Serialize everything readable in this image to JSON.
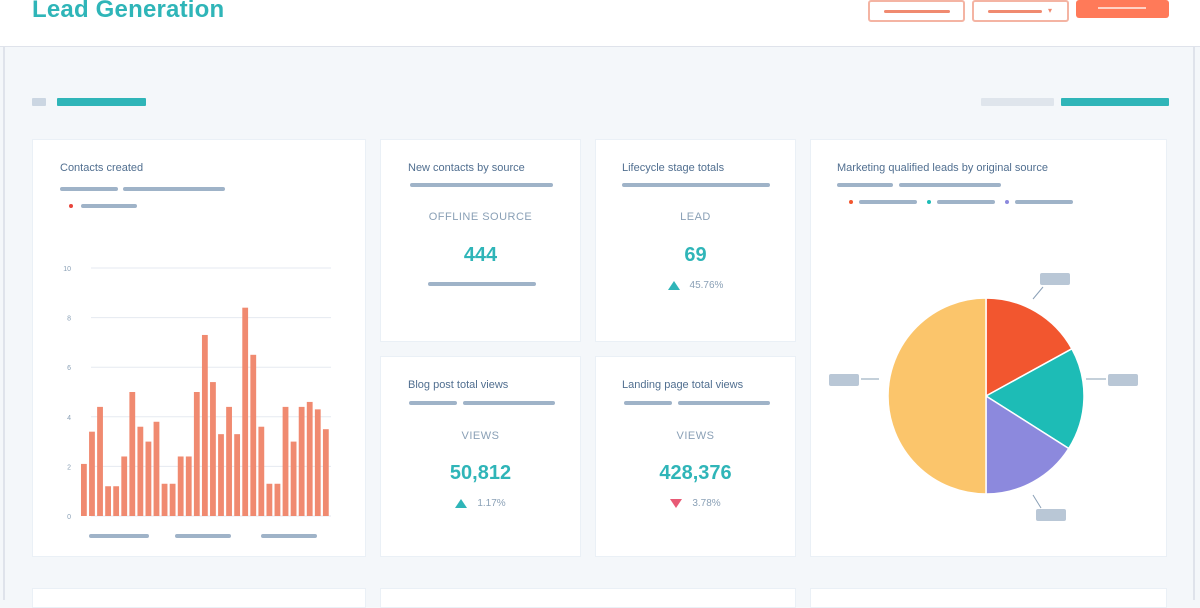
{
  "header": {
    "title": "Lead Generation"
  },
  "colors": {
    "accent": "#2fb5b8",
    "primary_button": "#ff7a59",
    "bar": "#f08a70",
    "pie_orange": "#fbc56b",
    "pie_red": "#f2562f",
    "pie_teal": "#1dbcb6",
    "pie_purple": "#8c89dd",
    "down": "#e85a75"
  },
  "cards": {
    "contacts_created": {
      "title": "Contacts created"
    },
    "new_contacts": {
      "title": "New contacts by source",
      "label": "OFFLINE SOURCE",
      "value": "444"
    },
    "lifecycle": {
      "title": "Lifecycle stage totals",
      "label": "LEAD",
      "value": "69",
      "change": "45.76%"
    },
    "mql": {
      "title": "Marketing qualified leads by original source"
    },
    "blog": {
      "title": "Blog post total views",
      "label": "VIEWS",
      "value": "50,812",
      "change": "1.17%"
    },
    "landing": {
      "title": "Landing page total views",
      "label": "VIEWS",
      "value": "428,376",
      "change": "3.78%"
    }
  },
  "chart_data": [
    {
      "type": "bar",
      "title": "Contacts created",
      "yticks": [
        "10",
        "8",
        "6",
        "4",
        "2",
        "0"
      ],
      "ylim": [
        0,
        10
      ],
      "grid": true,
      "values": [
        2.1,
        3.4,
        4.4,
        1.2,
        1.2,
        2.4,
        5.0,
        3.6,
        3.0,
        3.8,
        1.3,
        1.3,
        2.4,
        2.4,
        5.0,
        7.3,
        5.4,
        3.3,
        4.4,
        3.3,
        8.4,
        6.5,
        3.6,
        1.3,
        1.3,
        4.4,
        3.0,
        4.4,
        4.6,
        4.3,
        3.5
      ],
      "color": "#f08a70"
    },
    {
      "type": "pie",
      "title": "Marketing qualified leads by original source",
      "values": [
        17,
        17,
        16,
        50
      ],
      "colors": [
        "#f2562f",
        "#1dbcb6",
        "#8c89dd",
        "#fbc56b"
      ]
    }
  ]
}
